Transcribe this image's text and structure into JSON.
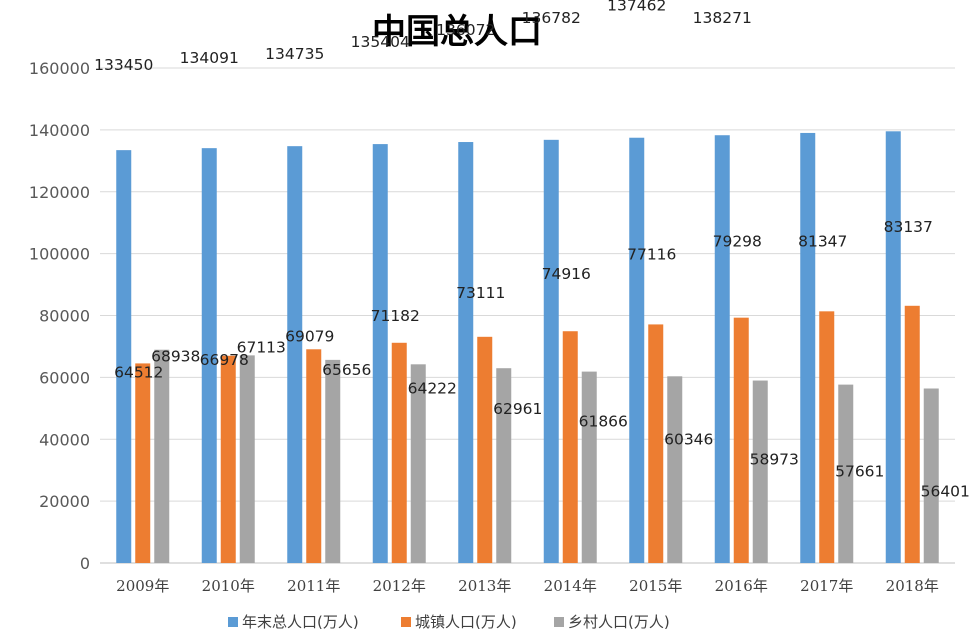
{
  "chart_data": {
    "type": "bar",
    "title": "中国总人口",
    "categories": [
      "2009年",
      "2010年",
      "2011年",
      "2012年",
      "2013年",
      "2014年",
      "2015年",
      "2016年",
      "2017年",
      "2018年"
    ],
    "series": [
      {
        "name": "年末总人口(万人)",
        "color": "#5B9BD5",
        "values": [
          133450,
          134091,
          134735,
          135404,
          136072,
          136782,
          137462,
          138271,
          139008,
          139538
        ]
      },
      {
        "name": "城镇人口(万人)",
        "color": "#ED7D31",
        "values": [
          64512,
          66978,
          69079,
          71182,
          73111,
          74916,
          77116,
          79298,
          81347,
          83137
        ]
      },
      {
        "name": "乡村人口(万人)",
        "color": "#A5A5A5",
        "values": [
          68938,
          67113,
          65656,
          64222,
          62961,
          61866,
          60346,
          58973,
          57661,
          56401
        ]
      }
    ],
    "yticks": [
      0,
      20000,
      40000,
      60000,
      80000,
      100000,
      120000,
      140000,
      160000
    ],
    "ylim": [
      0,
      160000
    ],
    "grid": true,
    "legend_position": "bottom"
  }
}
